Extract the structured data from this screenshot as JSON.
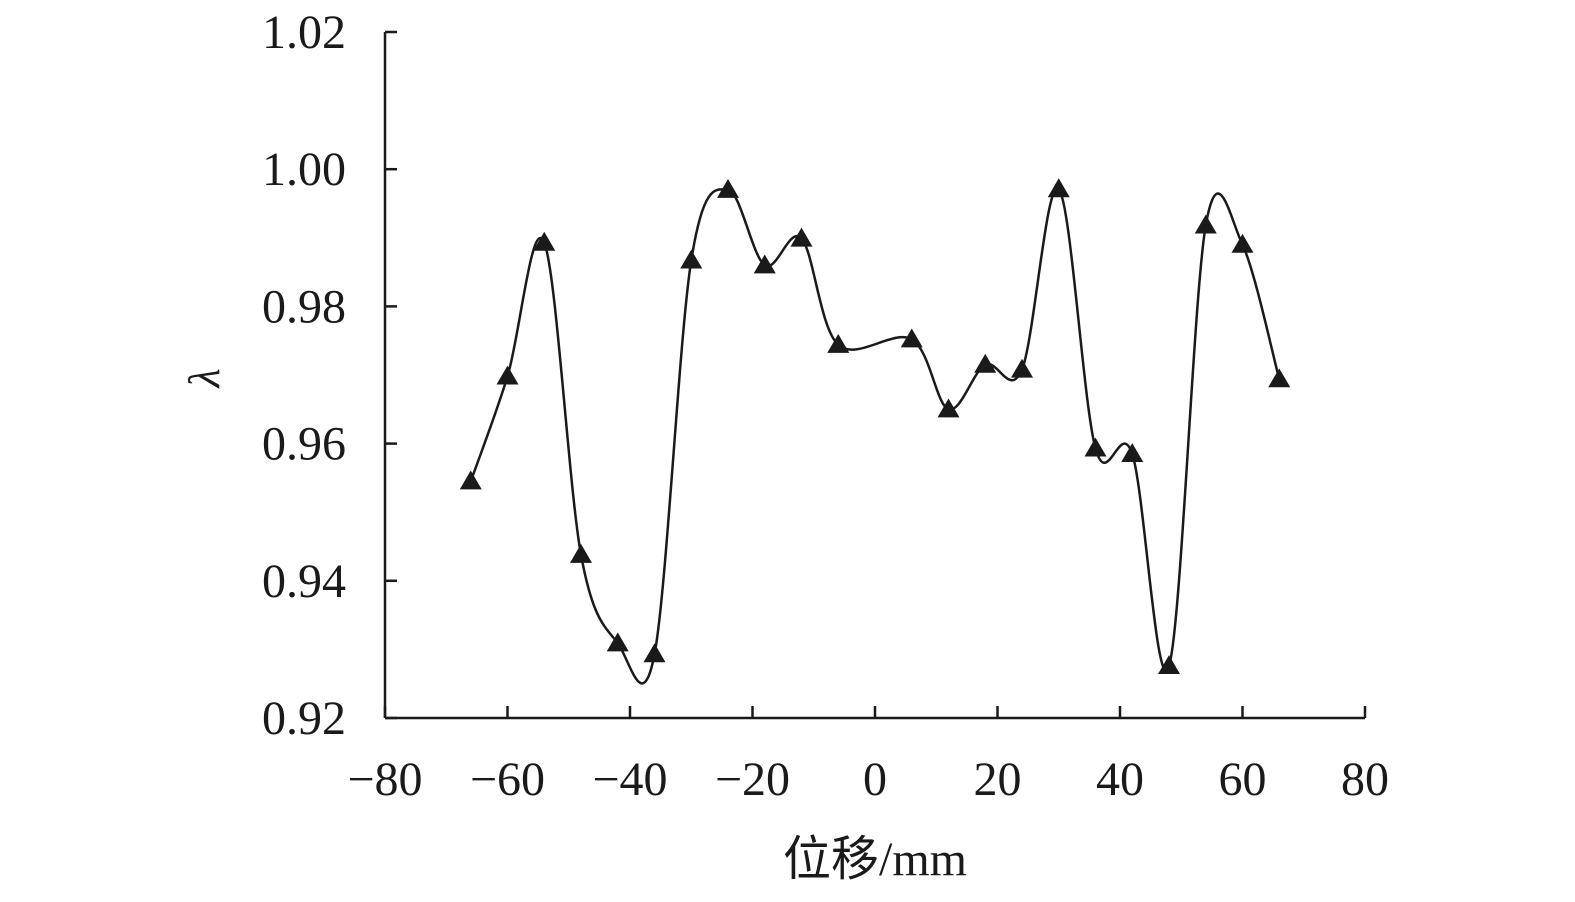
{
  "chart_data": {
    "type": "line",
    "xlabel": "位移/mm",
    "ylabel": "λ",
    "xlim": [
      -80,
      80
    ],
    "ylim": [
      0.92,
      1.02
    ],
    "xticks": [
      -80,
      -60,
      -40,
      -20,
      0,
      20,
      40,
      60,
      80
    ],
    "xtick_labels": [
      "−80",
      "−60",
      "−40",
      "−20",
      "0",
      "20",
      "40",
      "60",
      "80"
    ],
    "yticks": [
      0.92,
      0.94,
      0.96,
      0.98,
      1.0,
      1.02
    ],
    "ytick_labels": [
      "0.92",
      "0.94",
      "0.96",
      "0.98",
      "1.00",
      "1.02"
    ],
    "grid": false,
    "marker": "triangle",
    "line_color": "#1a1a1a",
    "series": [
      {
        "x": [
          -66,
          -60,
          -54,
          -48,
          -42,
          -36,
          -30,
          -24,
          -18,
          -12,
          -6,
          6,
          12,
          18,
          24,
          30,
          36,
          42,
          48,
          54,
          60,
          66
        ],
        "values": [
          0.9545,
          0.9698,
          0.9893,
          0.9438,
          0.9309,
          0.9293,
          0.9867,
          0.997,
          0.986,
          0.9899,
          0.9744,
          0.9752,
          0.965,
          0.9715,
          0.9708,
          0.9971,
          0.9593,
          0.9585,
          0.9276,
          0.9918,
          0.989,
          0.9694
        ]
      }
    ]
  }
}
